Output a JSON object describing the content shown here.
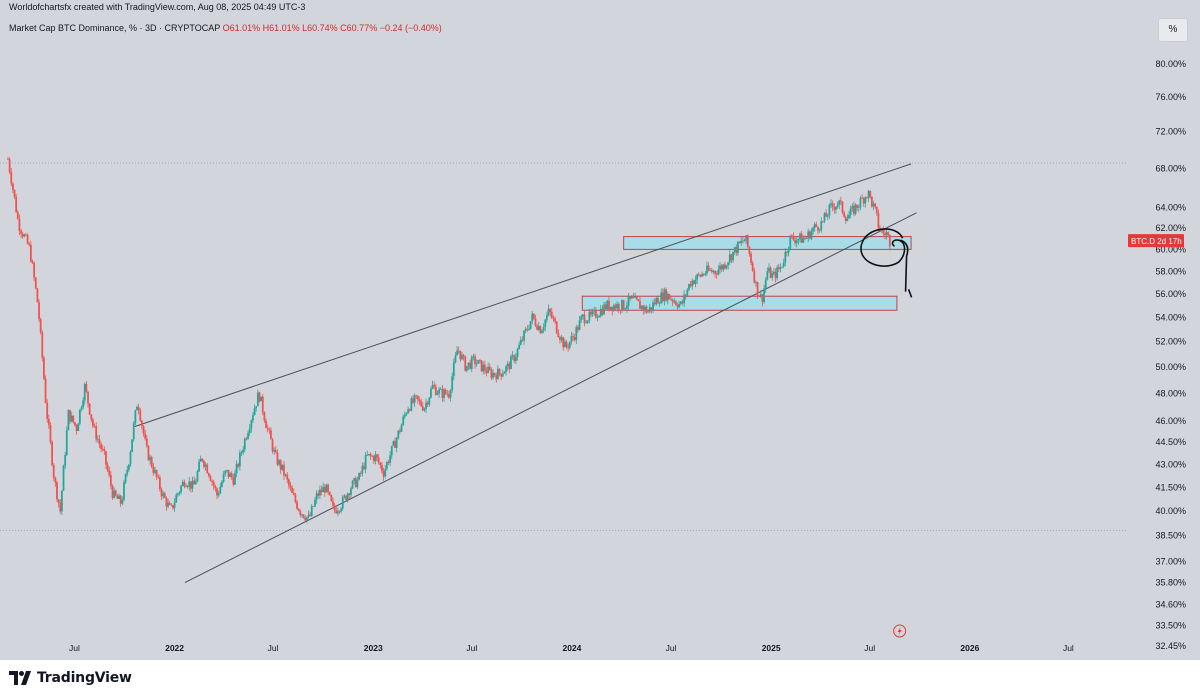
{
  "header": {
    "credit": "Worldofchartsfx created with TradingView.com, Aug 08, 2025 04:49 UTC-3",
    "symbol": "Market Cap BTC Dominance, % · 3D · CRYPTOCAP",
    "ohlc": "O61.01% H61.01% L60.74% C60.77% −0.24 (−0.40%)",
    "scale_button": "%"
  },
  "colors": {
    "background": "#d3d5dd",
    "up_candle": "#26a69a",
    "down_candle": "#ef5350",
    "zone_fill": "#a9dce6",
    "zone_border": "#c0424a",
    "trendline": "#4a4e5a",
    "annotation": "#111111",
    "price_label_bg": "#e53935"
  },
  "footer": {
    "brand": "TradingView"
  },
  "chart_data": {
    "type": "candlestick",
    "scale": "log",
    "price_axis_labels": [
      "80.00%",
      "76.00%",
      "72.00%",
      "68.00%",
      "64.00%",
      "62.00%",
      "60.00%",
      "58.00%",
      "56.00%",
      "54.00%",
      "52.00%",
      "50.00%",
      "48.00%",
      "46.00%",
      "44.50%",
      "43.00%",
      "41.50%",
      "40.00%",
      "38.50%",
      "37.00%",
      "35.80%",
      "34.60%",
      "33.50%",
      "32.45%"
    ],
    "time_axis_labels": [
      "Jul",
      "2022",
      "Jul",
      "2023",
      "Jul",
      "2024",
      "Jul",
      "2025",
      "Jul",
      "2026",
      "Jul"
    ],
    "current_price_label": "BTC.D  2d 17h",
    "ylim": [
      32.0,
      83.0
    ],
    "series": [
      {
        "name": "BTC.D",
        "points": [
          [
            "2021-03-01",
            69.0
          ],
          [
            "2021-03-20",
            62.5
          ],
          [
            "2021-04-10",
            60.0
          ],
          [
            "2021-04-25",
            55.0
          ],
          [
            "2021-05-10",
            47.0
          ],
          [
            "2021-05-25",
            42.0
          ],
          [
            "2021-06-05",
            40.0
          ],
          [
            "2021-06-20",
            46.5
          ],
          [
            "2021-07-05",
            45.5
          ],
          [
            "2021-07-20",
            48.5
          ],
          [
            "2021-08-05",
            45.5
          ],
          [
            "2021-08-25",
            43.5
          ],
          [
            "2021-09-10",
            41.0
          ],
          [
            "2021-09-25",
            40.5
          ],
          [
            "2021-10-10",
            43.5
          ],
          [
            "2021-10-25",
            47.5
          ],
          [
            "2021-11-10",
            44.0
          ],
          [
            "2021-11-25",
            42.5
          ],
          [
            "2021-12-10",
            41.0
          ],
          [
            "2021-12-25",
            40.0
          ],
          [
            "2022-01-05",
            41.0
          ],
          [
            "2022-01-20",
            42.0
          ],
          [
            "2022-02-05",
            41.5
          ],
          [
            "2022-02-20",
            43.5
          ],
          [
            "2022-03-05",
            42.5
          ],
          [
            "2022-03-20",
            41.0
          ],
          [
            "2022-04-05",
            42.5
          ],
          [
            "2022-04-20",
            42.0
          ],
          [
            "2022-05-05",
            44.0
          ],
          [
            "2022-05-20",
            46.0
          ],
          [
            "2022-06-05",
            48.0
          ],
          [
            "2022-06-20",
            45.5
          ],
          [
            "2022-07-05",
            43.5
          ],
          [
            "2022-07-20",
            42.5
          ],
          [
            "2022-08-05",
            41.0
          ],
          [
            "2022-08-20",
            40.0
          ],
          [
            "2022-09-05",
            39.5
          ],
          [
            "2022-09-20",
            41.0
          ],
          [
            "2022-10-05",
            41.5
          ],
          [
            "2022-10-20",
            40.0
          ],
          [
            "2022-11-05",
            40.5
          ],
          [
            "2022-11-20",
            41.5
          ],
          [
            "2022-12-05",
            42.0
          ],
          [
            "2022-12-20",
            43.5
          ],
          [
            "2023-01-05",
            43.5
          ],
          [
            "2023-01-20",
            42.5
          ],
          [
            "2023-02-05",
            44.0
          ],
          [
            "2023-02-20",
            45.5
          ],
          [
            "2023-03-05",
            47.0
          ],
          [
            "2023-03-20",
            47.5
          ],
          [
            "2023-04-05",
            47.0
          ],
          [
            "2023-04-20",
            48.5
          ],
          [
            "2023-05-05",
            48.0
          ],
          [
            "2023-05-20",
            48.0
          ],
          [
            "2023-06-05",
            51.5
          ],
          [
            "2023-06-20",
            50.0
          ],
          [
            "2023-07-05",
            50.5
          ],
          [
            "2023-07-20",
            50.0
          ],
          [
            "2023-08-05",
            49.5
          ],
          [
            "2023-08-20",
            49.5
          ],
          [
            "2023-09-05",
            50.0
          ],
          [
            "2023-09-20",
            51.0
          ],
          [
            "2023-10-05",
            52.5
          ],
          [
            "2023-10-20",
            54.0
          ],
          [
            "2023-11-05",
            53.0
          ],
          [
            "2023-11-20",
            54.5
          ],
          [
            "2023-12-05",
            53.0
          ],
          [
            "2023-12-20",
            51.5
          ],
          [
            "2024-01-05",
            52.5
          ],
          [
            "2024-01-20",
            54.0
          ],
          [
            "2024-02-05",
            54.0
          ],
          [
            "2024-02-20",
            54.5
          ],
          [
            "2024-03-05",
            55.0
          ],
          [
            "2024-03-20",
            55.0
          ],
          [
            "2024-04-05",
            55.0
          ],
          [
            "2024-04-20",
            55.5
          ],
          [
            "2024-05-05",
            55.0
          ],
          [
            "2024-05-20",
            54.5
          ],
          [
            "2024-06-05",
            55.5
          ],
          [
            "2024-06-20",
            56.0
          ],
          [
            "2024-07-05",
            55.5
          ],
          [
            "2024-07-20",
            55.0
          ],
          [
            "2024-08-05",
            57.0
          ],
          [
            "2024-08-20",
            57.5
          ],
          [
            "2024-09-05",
            58.0
          ],
          [
            "2024-09-20",
            58.0
          ],
          [
            "2024-10-05",
            58.5
          ],
          [
            "2024-10-20",
            59.5
          ],
          [
            "2024-11-05",
            60.5
          ],
          [
            "2024-11-15",
            61.0
          ],
          [
            "2024-11-25",
            59.0
          ],
          [
            "2024-12-05",
            56.5
          ],
          [
            "2024-12-15",
            55.5
          ],
          [
            "2024-12-25",
            58.0
          ],
          [
            "2025-01-05",
            57.5
          ],
          [
            "2025-01-20",
            58.5
          ],
          [
            "2025-02-05",
            61.0
          ],
          [
            "2025-02-20",
            61.0
          ],
          [
            "2025-03-05",
            61.0
          ],
          [
            "2025-03-20",
            62.0
          ],
          [
            "2025-04-05",
            62.5
          ],
          [
            "2025-04-20",
            64.0
          ],
          [
            "2025-05-05",
            64.5
          ],
          [
            "2025-05-20",
            63.0
          ],
          [
            "2025-06-05",
            64.0
          ],
          [
            "2025-06-20",
            65.0
          ],
          [
            "2025-06-28",
            65.5
          ],
          [
            "2025-07-05",
            64.5
          ],
          [
            "2025-07-12",
            63.5
          ],
          [
            "2025-07-18",
            62.0
          ],
          [
            "2025-07-25",
            61.5
          ],
          [
            "2025-08-01",
            61.5
          ],
          [
            "2025-08-07",
            60.77
          ]
        ]
      }
    ],
    "drawings": {
      "upper_trendline": [
        [
          "2021-10-20",
          45.6
        ],
        [
          "2025-09-15",
          68.5
        ]
      ],
      "lower_trendline": [
        [
          "2022-01-20",
          35.8
        ],
        [
          "2025-09-25",
          63.5
        ]
      ],
      "resistance_zone": {
        "from": "2024-04-05",
        "to": "2025-09-15",
        "top": 61.2,
        "bottom": 60.0
      },
      "support_zone": {
        "from": "2024-01-20",
        "to": "2025-08-20",
        "top": 55.8,
        "bottom": 54.6
      },
      "dotted_levels": [
        68.6,
        38.8
      ]
    }
  }
}
